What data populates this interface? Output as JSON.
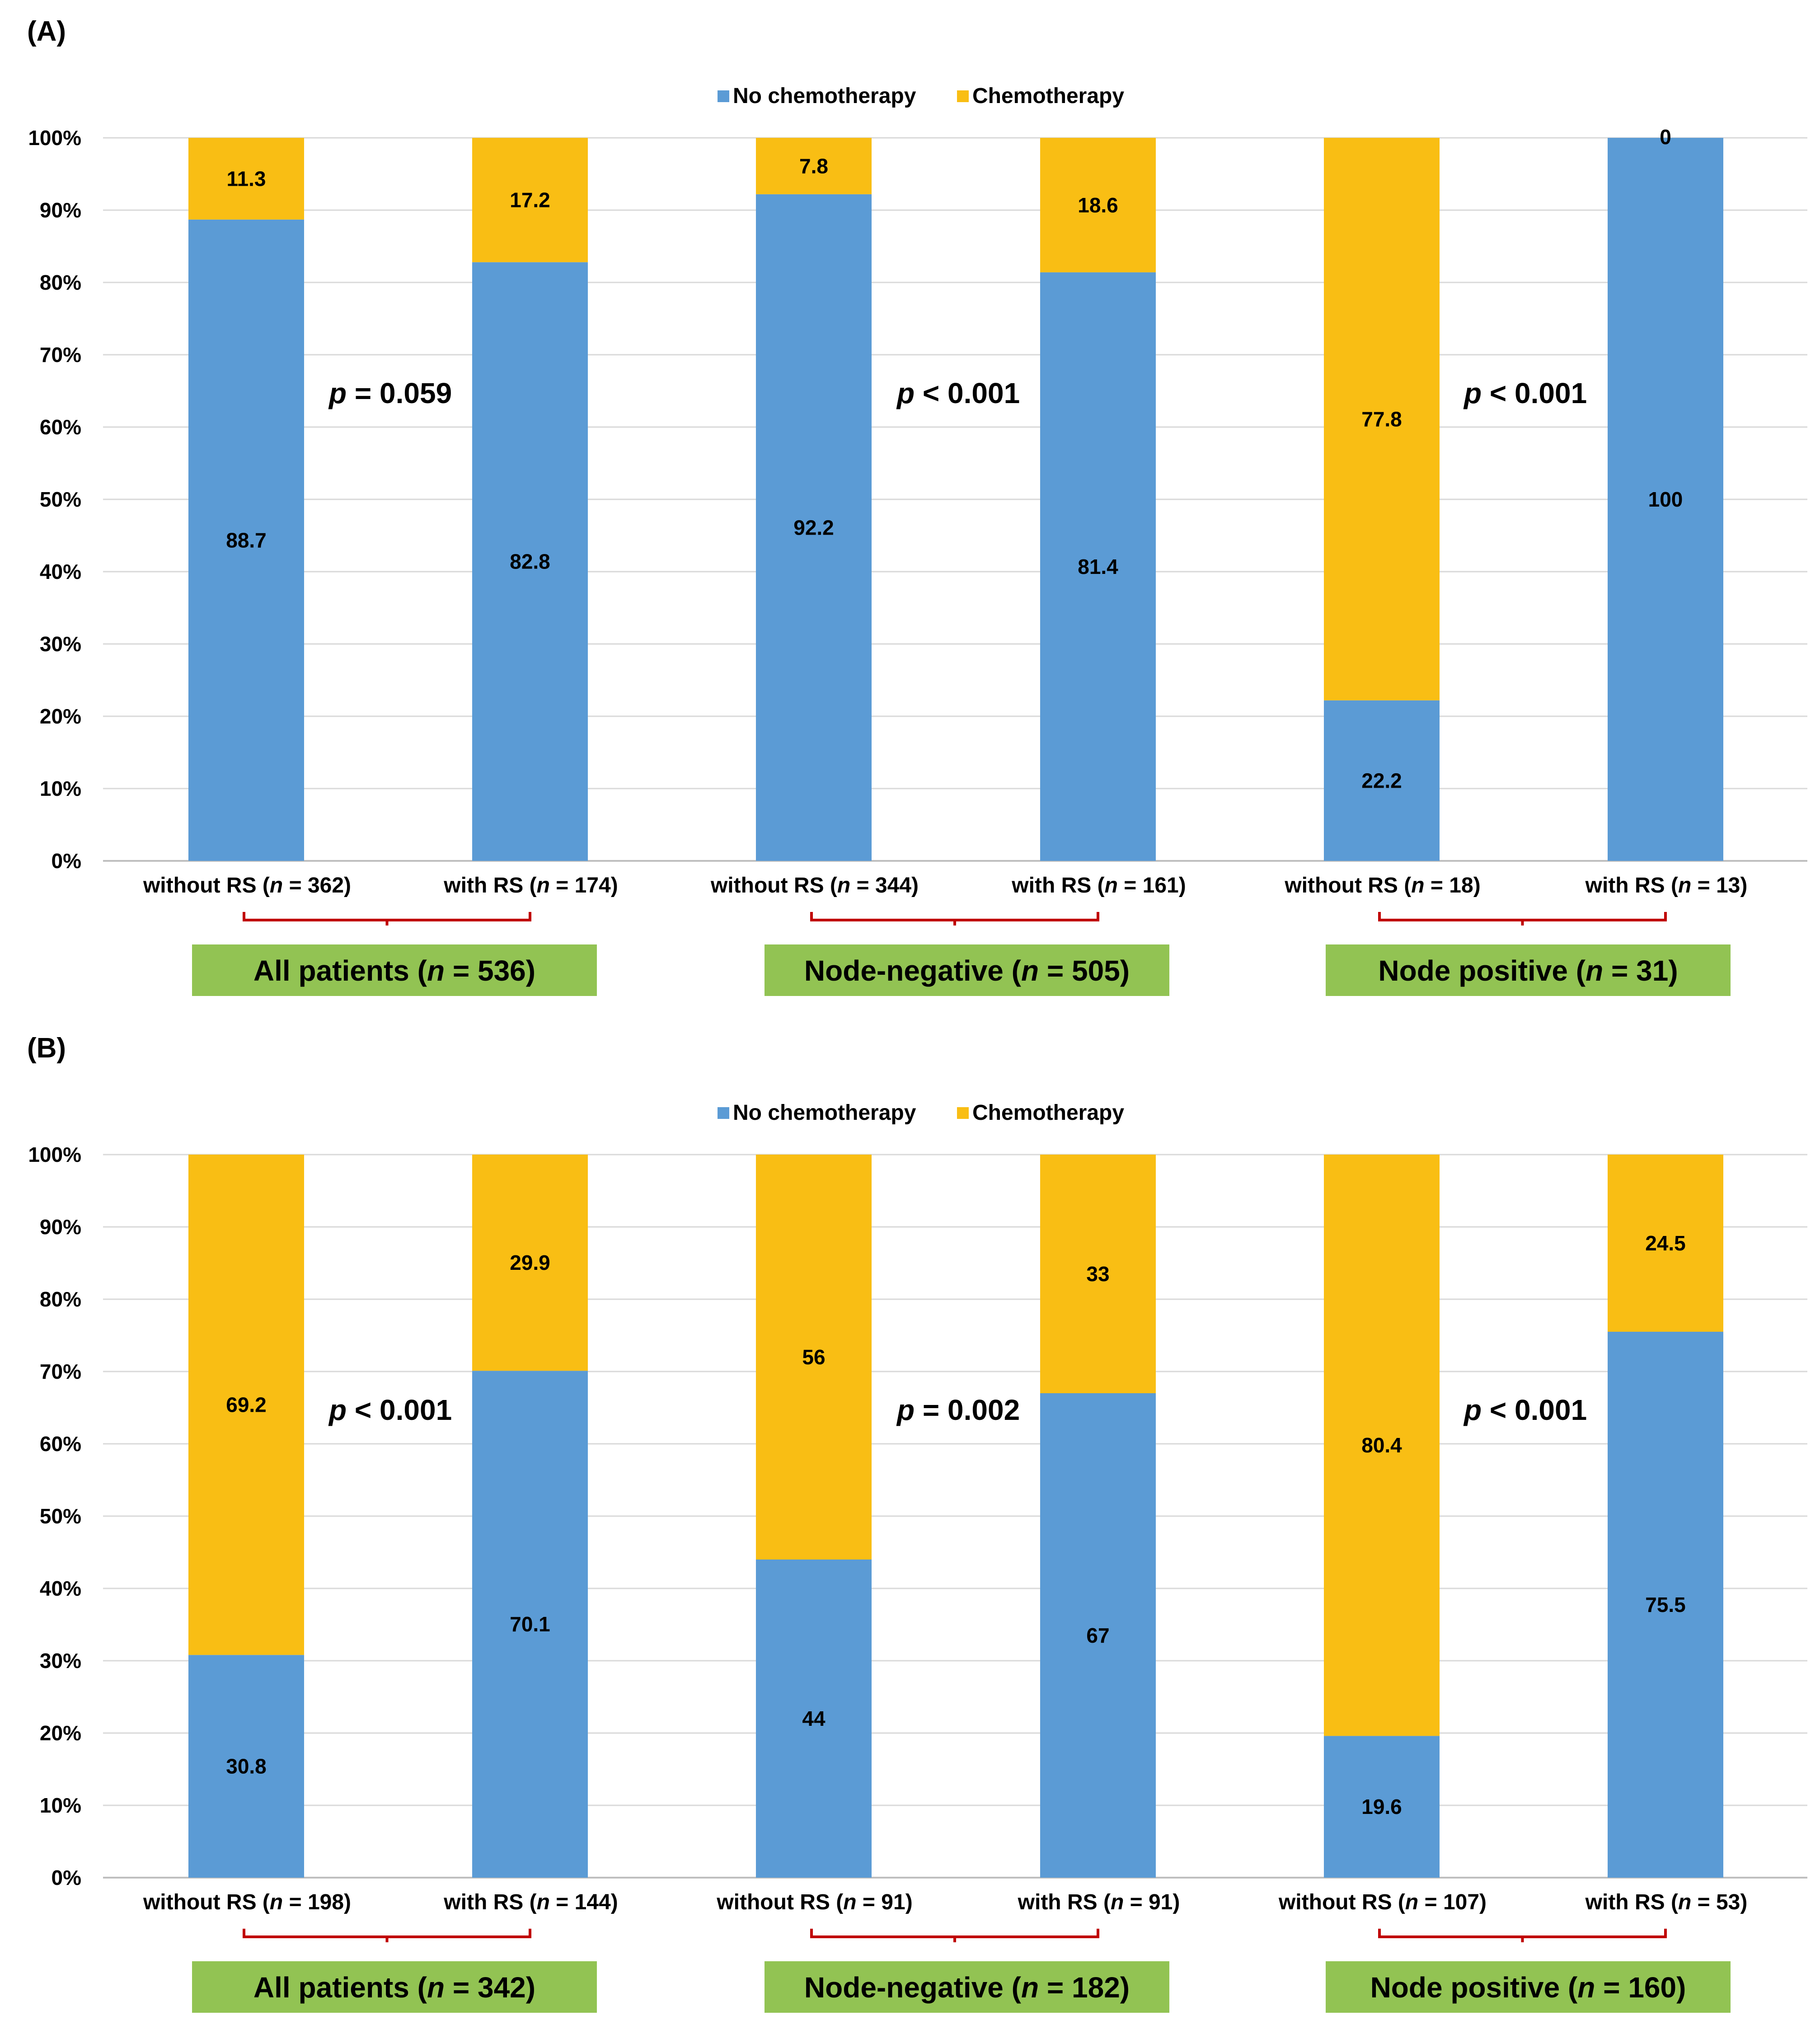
{
  "colors": {
    "no_chemo": "#5B9BD5",
    "chemo": "#F9BE14",
    "grid": "#D9D9D9",
    "axis": "#BFBFBF",
    "bracket": "#C00000",
    "group_box": "#92C353",
    "text": "#000000"
  },
  "chart_data": [
    {
      "type": "bar",
      "stacked": true,
      "panel_label": "(A)",
      "legend": [
        "No chemotherapy",
        "Chemotherapy"
      ],
      "legend_position": "top-center",
      "ylim": [
        0,
        100
      ],
      "yticks": [
        "0%",
        "10%",
        "20%",
        "30%",
        "40%",
        "50%",
        "60%",
        "70%",
        "80%",
        "90%",
        "100%"
      ],
      "categories": [
        {
          "pre": "without RS (",
          "n": "n",
          "post": " = 362)"
        },
        {
          "pre": "with RS (",
          "n": "n",
          "post": " = 174)"
        },
        {
          "pre": "without RS (",
          "n": "n",
          "post": " = 344)"
        },
        {
          "pre": "with RS (",
          "n": "n",
          "post": " = 161)"
        },
        {
          "pre": "without RS (",
          "n": "n",
          "post": " = 18)"
        },
        {
          "pre": "with RS (",
          "n": "n",
          "post": " = 13)"
        }
      ],
      "series": [
        {
          "name": "No chemotherapy",
          "values": [
            88.7,
            82.8,
            92.2,
            81.4,
            22.2,
            100
          ]
        },
        {
          "name": "Chemotherapy",
          "values": [
            11.3,
            17.2,
            7.8,
            18.6,
            77.8,
            0
          ]
        }
      ],
      "pvalues": [
        {
          "p": "p",
          "rest": " = 0.059"
        },
        {
          "p": "p",
          "rest": " < 0.001"
        },
        {
          "p": "p",
          "rest": " < 0.001"
        }
      ],
      "groups": [
        {
          "pre": "All patients (",
          "n": "n",
          "post": " = 536)"
        },
        {
          "pre": "Node-negative (",
          "n": "n",
          "post": " = 505)"
        },
        {
          "pre": "Node positive (",
          "n": "n",
          "post": " = 31)"
        }
      ]
    },
    {
      "type": "bar",
      "stacked": true,
      "panel_label": "(B)",
      "legend": [
        "No chemotherapy",
        "Chemotherapy"
      ],
      "legend_position": "top-center",
      "ylim": [
        0,
        100
      ],
      "yticks": [
        "0%",
        "10%",
        "20%",
        "30%",
        "40%",
        "50%",
        "60%",
        "70%",
        "80%",
        "90%",
        "100%"
      ],
      "categories": [
        {
          "pre": "without RS (",
          "n": "n",
          "post": " = 198)"
        },
        {
          "pre": "with RS (",
          "n": "n",
          "post": " = 144)"
        },
        {
          "pre": "without RS (",
          "n": "n",
          "post": " = 91)"
        },
        {
          "pre": "with RS (",
          "n": "n",
          "post": " = 91)"
        },
        {
          "pre": "without RS (",
          "n": "n",
          "post": " = 107)"
        },
        {
          "pre": "with RS (",
          "n": "n",
          "post": " = 53)"
        }
      ],
      "series": [
        {
          "name": "No chemotherapy",
          "values": [
            30.8,
            70.1,
            44,
            67,
            19.6,
            75.5
          ]
        },
        {
          "name": "Chemotherapy",
          "values": [
            69.2,
            29.9,
            56,
            33,
            80.4,
            24.5
          ]
        }
      ],
      "pvalues": [
        {
          "p": "p",
          "rest": " < 0.001"
        },
        {
          "p": "p",
          "rest": " = 0.002"
        },
        {
          "p": "p",
          "rest": " < 0.001"
        }
      ],
      "groups": [
        {
          "pre": "All patients (",
          "n": "n",
          "post": " = 342)"
        },
        {
          "pre": "Node-negative (",
          "n": "n",
          "post": " = 182)"
        },
        {
          "pre": "Node positive (",
          "n": "n",
          "post": " = 160)"
        }
      ]
    }
  ]
}
